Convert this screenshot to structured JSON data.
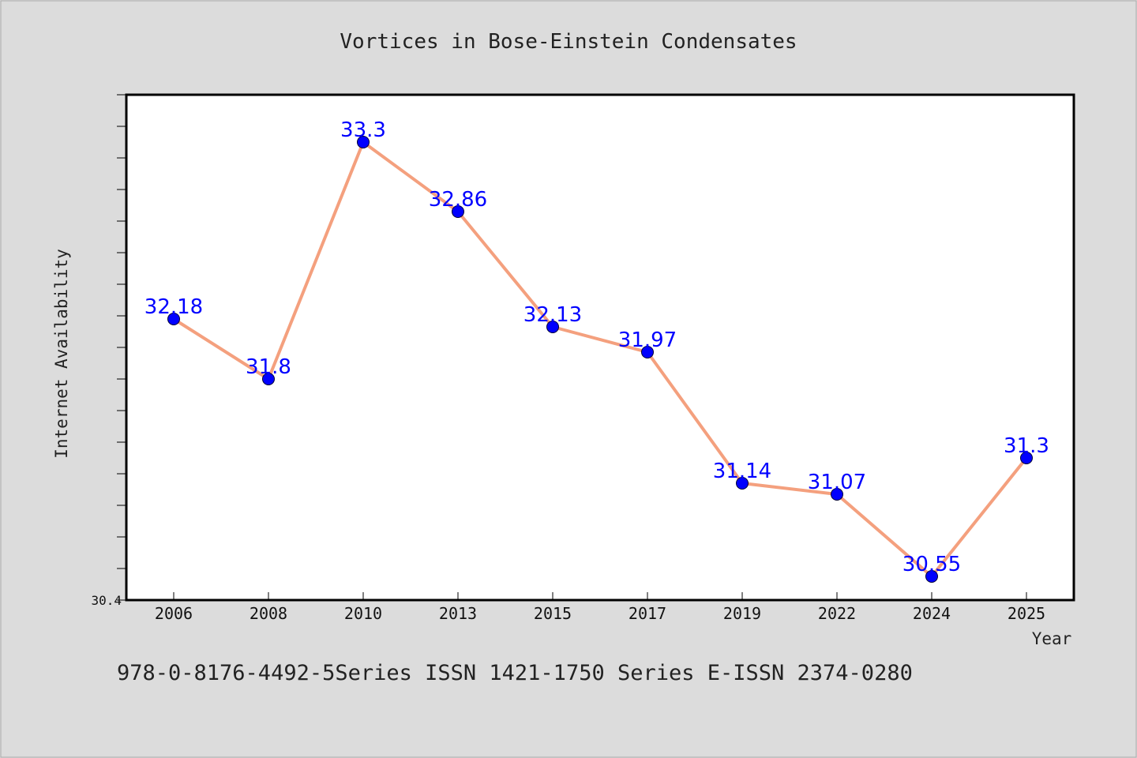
{
  "chart_data": {
    "type": "line",
    "title": "Vortices in Bose-Einstein Condensates",
    "xlabel": "Year",
    "ylabel": "Internet Availability",
    "categories": [
      "2006",
      "2008",
      "2010",
      "2013",
      "2015",
      "2017",
      "2019",
      "2022",
      "2024",
      "2025"
    ],
    "series": [
      {
        "values": [
          32.18,
          31.8,
          33.3,
          32.86,
          32.13,
          31.97,
          31.14,
          31.07,
          30.55,
          31.3
        ],
        "labels": [
          "32.18",
          "31.8",
          "33.3",
          "32.86",
          "32.13",
          "31.97",
          "31.14",
          "31.07",
          "30.55",
          "31.3"
        ]
      }
    ],
    "ylim": [
      30.4,
      33.6
    ],
    "y_tick_labels": [
      "30.4"
    ],
    "grid": false,
    "line_color": "#f4a07e",
    "marker_color": "#0000ff",
    "label_color": "#0000ff",
    "background_color": "#dcdcdc",
    "plot_background_color": "#ffffff"
  },
  "footer": {
    "text": "978-0-8176-4492-5Series ISSN 1421-1750 Series E-ISSN 2374-0280"
  }
}
